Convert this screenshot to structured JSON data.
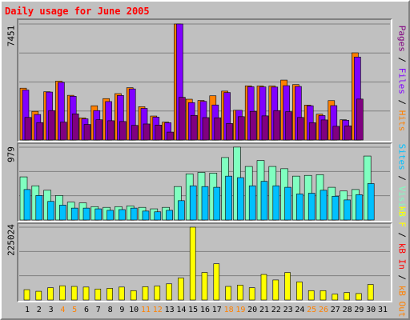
{
  "title": "Daily usage for June 2005",
  "colors": {
    "title": "#ff0000",
    "hits": "#ff8000",
    "files": "#8000ff",
    "pages": "#800080",
    "visits": "#80ffc0",
    "sites": "#00c0ff",
    "kb_in": "#ff0000",
    "kb_out": "#ff8000",
    "kb_f": "#ffff00",
    "weekend_label": "#ff8000",
    "weekday_label": "#000000",
    "gridline": "#808080"
  },
  "legend_pages": [
    {
      "text": "Pages",
      "color": "#800080"
    },
    {
      "text": " / ",
      "color": "#000000"
    },
    {
      "text": "Files",
      "color": "#8000ff"
    },
    {
      "text": " / ",
      "color": "#000000"
    },
    {
      "text": "Hits",
      "color": "#ff8000"
    }
  ],
  "legend_sites": [
    {
      "text": "Sites",
      "color": "#00c0ff"
    },
    {
      "text": " / ",
      "color": "#000000"
    },
    {
      "text": "Visits",
      "color": "#80ffc0"
    }
  ],
  "legend_volume": [
    {
      "text": "kB F",
      "color": "#ffff00"
    },
    {
      "text": " / ",
      "color": "#000000"
    },
    {
      "text": "kB In",
      "color": "#ff0000"
    },
    {
      "text": " / ",
      "color": "#000000"
    },
    {
      "text": "kB Out",
      "color": "#ff8000"
    }
  ],
  "chart_data": [
    {
      "type": "bar",
      "title": "Daily usage for June 2005",
      "ylabel": "7451",
      "ylim": [
        0,
        7451
      ],
      "grid": true,
      "legend": "right",
      "categories": [
        "1",
        "2",
        "3",
        "4",
        "5",
        "6",
        "7",
        "8",
        "9",
        "10",
        "11",
        "12",
        "13",
        "14",
        "15",
        "16",
        "17",
        "18",
        "19",
        "20",
        "21",
        "22",
        "23",
        "24",
        "25",
        "26",
        "27",
        "28",
        "29",
        "30",
        "31"
      ],
      "weekend_days": [
        "4",
        "5",
        "11",
        "12",
        "18",
        "19",
        "25",
        "26"
      ],
      "series": [
        {
          "name": "Hits",
          "values": [
            3330,
            1840,
            3100,
            3780,
            2870,
            1420,
            2200,
            2660,
            2980,
            3360,
            2140,
            1540,
            1150,
            7451,
            2620,
            2540,
            2840,
            3140,
            1910,
            3480,
            3470,
            3470,
            3850,
            3560,
            2240,
            1660,
            2530,
            1300,
            5600,
            0,
            0
          ]
        },
        {
          "name": "Files",
          "values": [
            3210,
            1640,
            3080,
            3700,
            2810,
            1360,
            1890,
            2470,
            2860,
            3280,
            2030,
            1470,
            1110,
            7451,
            2400,
            2480,
            2250,
            3050,
            1910,
            3420,
            3410,
            3400,
            3490,
            3440,
            2200,
            1570,
            2210,
            1270,
            5330,
            0,
            0
          ]
        },
        {
          "name": "Pages",
          "values": [
            1450,
            1120,
            1890,
            1150,
            1680,
            1000,
            1300,
            1240,
            1190,
            940,
            1030,
            960,
            510,
            2740,
            1580,
            1440,
            1430,
            1060,
            1500,
            1840,
            1550,
            1890,
            1820,
            1450,
            1110,
            1290,
            880,
            910,
            2630,
            0,
            0
          ]
        }
      ]
    },
    {
      "type": "bar",
      "ylabel": "979",
      "ylim": [
        0,
        979
      ],
      "grid": true,
      "legend": "right",
      "categories": [
        "1",
        "2",
        "3",
        "4",
        "5",
        "6",
        "7",
        "8",
        "9",
        "10",
        "11",
        "12",
        "13",
        "14",
        "15",
        "16",
        "17",
        "18",
        "19",
        "20",
        "21",
        "22",
        "23",
        "24",
        "25",
        "26",
        "27",
        "28",
        "29",
        "30",
        "31"
      ],
      "series": [
        {
          "name": "Visits",
          "values": [
            580,
            460,
            400,
            330,
            240,
            230,
            180,
            170,
            180,
            190,
            170,
            150,
            170,
            450,
            620,
            640,
            630,
            840,
            980,
            720,
            800,
            720,
            690,
            590,
            600,
            610,
            440,
            390,
            410,
            860,
            0
          ]
        },
        {
          "name": "Sites",
          "values": [
            410,
            330,
            250,
            200,
            160,
            160,
            150,
            130,
            140,
            160,
            120,
            110,
            130,
            260,
            460,
            450,
            440,
            590,
            570,
            460,
            520,
            460,
            440,
            350,
            360,
            400,
            320,
            270,
            340,
            490,
            0
          ]
        }
      ]
    },
    {
      "type": "bar",
      "ylabel": "225024",
      "ylim": [
        0,
        225024
      ],
      "grid": true,
      "legend": "right",
      "categories": [
        "1",
        "2",
        "3",
        "4",
        "5",
        "6",
        "7",
        "8",
        "9",
        "10",
        "11",
        "12",
        "13",
        "14",
        "15",
        "16",
        "17",
        "18",
        "19",
        "20",
        "21",
        "22",
        "23",
        "24",
        "25",
        "26",
        "27",
        "28",
        "29",
        "30",
        "31"
      ],
      "series": [
        {
          "name": "kB F",
          "values": [
            32000,
            27000,
            38000,
            44000,
            42000,
            40000,
            34000,
            36000,
            40000,
            29000,
            41000,
            43000,
            50000,
            68000,
            225024,
            85000,
            112000,
            42000,
            46000,
            38000,
            79000,
            62000,
            85000,
            56000,
            29000,
            29000,
            18000,
            23000,
            20000,
            48000,
            0
          ]
        },
        {
          "name": "kB In",
          "values": [
            0,
            0,
            0,
            0,
            0,
            0,
            0,
            0,
            0,
            0,
            0,
            0,
            0,
            0,
            0,
            0,
            0,
            0,
            0,
            0,
            0,
            0,
            0,
            0,
            0,
            0,
            0,
            0,
            0,
            0,
            0
          ]
        },
        {
          "name": "kB Out",
          "values": [
            0,
            0,
            0,
            0,
            0,
            0,
            0,
            0,
            0,
            0,
            0,
            0,
            0,
            0,
            0,
            0,
            0,
            0,
            0,
            0,
            0,
            0,
            0,
            0,
            0,
            0,
            0,
            0,
            0,
            0,
            0
          ]
        }
      ]
    }
  ]
}
